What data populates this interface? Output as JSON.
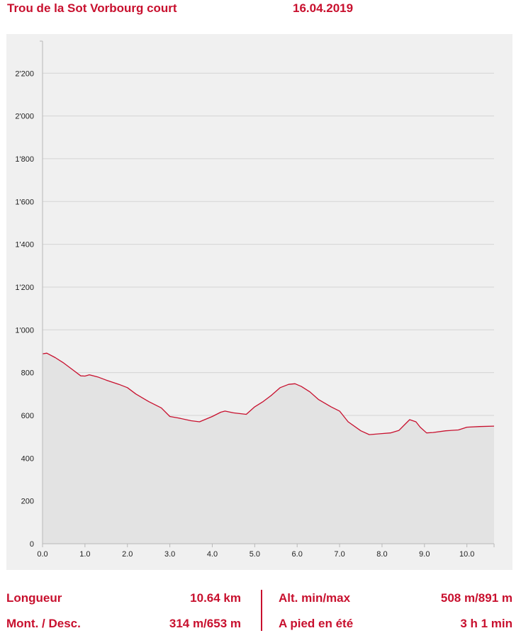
{
  "header": {
    "title": "Trou de la Sot Vorbourg court",
    "date": "16.04.2019"
  },
  "chart_data": {
    "type": "area",
    "title": "",
    "xlabel": "",
    "ylabel": "",
    "xlim": [
      0,
      10.64
    ],
    "ylim": [
      0,
      2350
    ],
    "x_ticks": [
      0,
      1,
      2,
      3,
      4,
      5,
      6,
      7,
      8,
      9,
      10
    ],
    "x_tick_labels": [
      "0.0",
      "1.0",
      "2.0",
      "3.0",
      "4.0",
      "5.0",
      "6.0",
      "7.0",
      "8.0",
      "9.0",
      "10.0"
    ],
    "y_ticks": [
      0,
      200,
      400,
      600,
      800,
      1000,
      1200,
      1400,
      1600,
      1800,
      2000,
      2200
    ],
    "y_tick_labels": [
      "0",
      "200",
      "400",
      "600",
      "800",
      "1'000",
      "1'200",
      "1'400",
      "1'600",
      "1'800",
      "2'000",
      "2'200"
    ],
    "grid": true,
    "colors": {
      "line": "#c8102e",
      "fill": "#e3e3e3",
      "grid": "#d4d4d4",
      "axis": "#b8b8b8",
      "text": "#222222"
    },
    "series": [
      {
        "x": [
          0,
          0.1,
          0.3,
          0.5,
          0.7,
          0.9,
          1.0,
          1.1,
          1.3,
          1.5,
          1.8,
          2.0,
          2.2,
          2.5,
          2.8,
          3.0,
          3.2,
          3.5,
          3.7,
          4.0,
          4.2,
          4.3,
          4.5,
          4.8,
          5.0,
          5.2,
          5.4,
          5.6,
          5.8,
          5.95,
          6.1,
          6.3,
          6.5,
          6.8,
          7.0,
          7.2,
          7.5,
          7.7,
          8.0,
          8.2,
          8.4,
          8.55,
          8.65,
          8.8,
          8.9,
          9.05,
          9.2,
          9.5,
          9.8,
          10.0,
          10.3,
          10.64
        ],
        "values": [
          888,
          891,
          870,
          845,
          815,
          785,
          784,
          790,
          780,
          765,
          745,
          730,
          700,
          665,
          635,
          595,
          588,
          575,
          570,
          595,
          615,
          620,
          612,
          605,
          640,
          665,
          695,
          730,
          745,
          748,
          735,
          710,
          675,
          640,
          620,
          570,
          528,
          510,
          515,
          518,
          530,
          560,
          580,
          570,
          545,
          518,
          520,
          528,
          532,
          545,
          548,
          550
        ]
      }
    ]
  },
  "stats": {
    "length_label": "Longueur",
    "length_value": "10.64 km",
    "ascent_label": "Mont. / Desc.",
    "ascent_value": "314 m/653 m",
    "alt_label": "Alt. min/max",
    "alt_value": "508 m/891 m",
    "walk_label": "A pied en été",
    "walk_value": "3 h 1 min"
  }
}
